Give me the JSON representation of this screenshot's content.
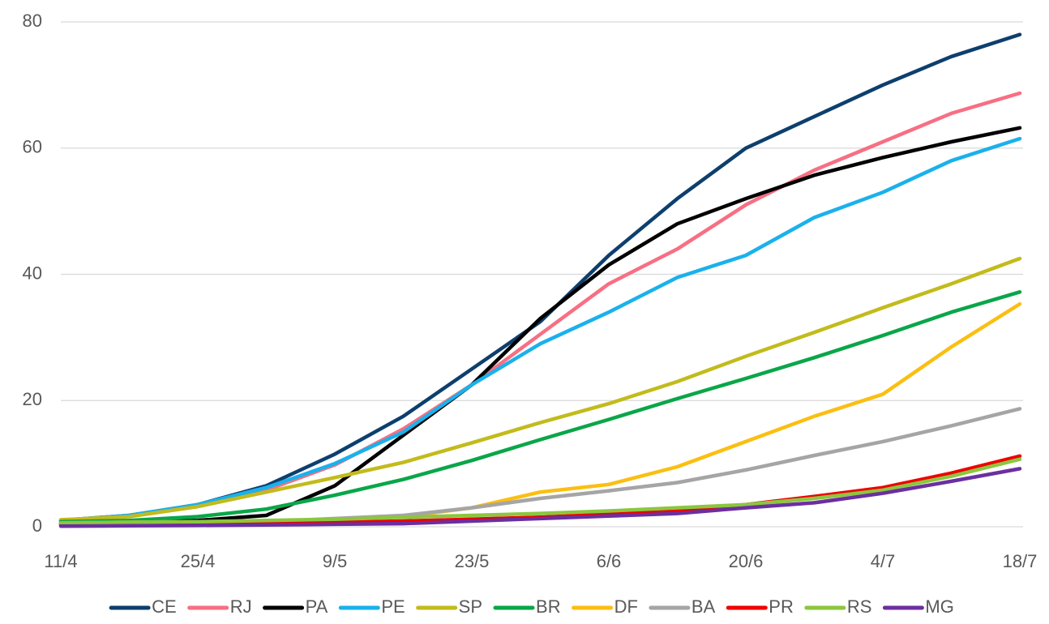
{
  "chart_data": {
    "type": "line",
    "categories": [
      "11/4",
      null,
      "25/4",
      null,
      "9/5",
      null,
      "23/5",
      null,
      "6/6",
      null,
      "20/6",
      null,
      "4/7",
      null,
      "18/7"
    ],
    "ylim": [
      0,
      80
    ],
    "yticks": [
      0,
      20,
      40,
      60,
      80
    ],
    "grid": true,
    "legend": "bottom",
    "series": [
      {
        "name": "CE",
        "color": "#0d3f6e",
        "values": [
          1,
          1.8,
          3.5,
          6.5,
          11.5,
          17.5,
          25,
          32.5,
          43,
          52,
          60,
          65,
          70,
          74.5,
          78
        ]
      },
      {
        "name": "RJ",
        "color": "#f76f83",
        "values": [
          1,
          1.8,
          3.3,
          5.8,
          9.8,
          15.5,
          22.5,
          30.5,
          38.5,
          44,
          51,
          56.5,
          61,
          65.5,
          68.7
        ]
      },
      {
        "name": "PA",
        "color": "#000000",
        "values": [
          0.5,
          0.7,
          1,
          1.8,
          6.5,
          14.5,
          22.5,
          33,
          41.5,
          48,
          52,
          55.7,
          58.5,
          61,
          63.2
        ]
      },
      {
        "name": "PE",
        "color": "#1ab1ec",
        "values": [
          1,
          1.8,
          3.5,
          6.2,
          10,
          15,
          22.5,
          29,
          34,
          39.5,
          43,
          49,
          53,
          58,
          61.5
        ]
      },
      {
        "name": "SP",
        "color": "#c2bb1c",
        "values": [
          1.1,
          1.6,
          3.2,
          5.5,
          7.8,
          10.2,
          13.3,
          16.5,
          19.5,
          23,
          27,
          30.8,
          34.7,
          38.5,
          42.5
        ]
      },
      {
        "name": "BR",
        "color": "#0aa649",
        "values": [
          0.8,
          1.0,
          1.6,
          2.8,
          5,
          7.5,
          10.5,
          13.8,
          17,
          20.3,
          23.5,
          26.8,
          30.3,
          34,
          37.2
        ]
      },
      {
        "name": "DF",
        "color": "#fbbf12",
        "values": [
          0.6,
          0.7,
          0.8,
          0.9,
          1.1,
          1.6,
          3,
          5.5,
          6.7,
          9.5,
          13.5,
          17.5,
          21,
          28.5,
          35.3
        ]
      },
      {
        "name": "BA",
        "color": "#a5a5a5",
        "values": [
          0.3,
          0.4,
          0.5,
          0.8,
          1.3,
          1.8,
          3,
          4.5,
          5.7,
          7,
          9,
          11.3,
          13.5,
          16,
          18.7
        ]
      },
      {
        "name": "PR",
        "color": "#ee0000",
        "values": [
          0.3,
          0.4,
          0.5,
          0.6,
          0.7,
          0.9,
          1.2,
          1.5,
          2.0,
          2.5,
          3.5,
          4.8,
          6.2,
          8.5,
          11.2
        ]
      },
      {
        "name": "RS",
        "color": "#8cc63f",
        "values": [
          0.6,
          0.7,
          0.8,
          1.0,
          1.2,
          1.5,
          1.8,
          2.1,
          2.5,
          3,
          3.5,
          4.5,
          5.8,
          8,
          10.7
        ]
      },
      {
        "name": "MG",
        "color": "#6b2fa0",
        "values": [
          0.1,
          0.15,
          0.2,
          0.3,
          0.4,
          0.5,
          0.9,
          1.3,
          1.7,
          2.1,
          3.0,
          3.8,
          5.3,
          7.2,
          9.2
        ]
      }
    ]
  }
}
